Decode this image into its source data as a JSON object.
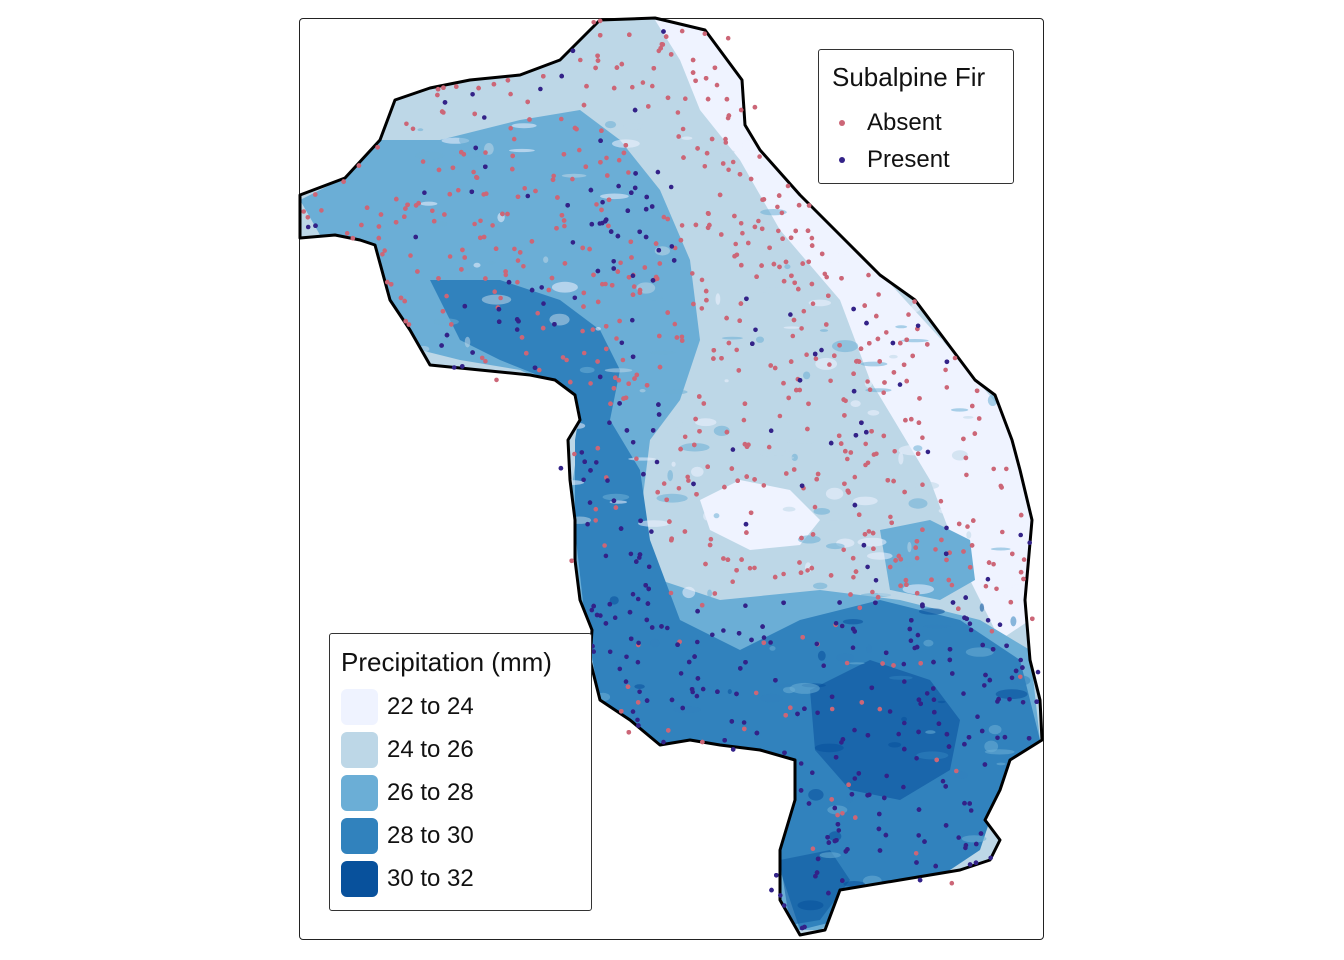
{
  "map": {
    "region": "study-area",
    "colors": {
      "boundary": "#000000",
      "absent": "#CC6677",
      "present": "#332288"
    }
  },
  "legend_species": {
    "title": "Subalpine Fir",
    "items": [
      {
        "label": "Absent",
        "color": "#CC6677"
      },
      {
        "label": "Present",
        "color": "#332288"
      }
    ]
  },
  "legend_precip": {
    "title": "Precipitation (mm)",
    "items": [
      {
        "label": "22 to 24",
        "color": "#EFF3FF"
      },
      {
        "label": "24 to 26",
        "color": "#BDD7E7"
      },
      {
        "label": "26 to 28",
        "color": "#6BAED6"
      },
      {
        "label": "28 to 30",
        "color": "#3182BD"
      },
      {
        "label": "30 to 32",
        "color": "#08519C"
      }
    ]
  },
  "icons": [
    "point-marker-icon",
    "legend-swatch-icon"
  ]
}
